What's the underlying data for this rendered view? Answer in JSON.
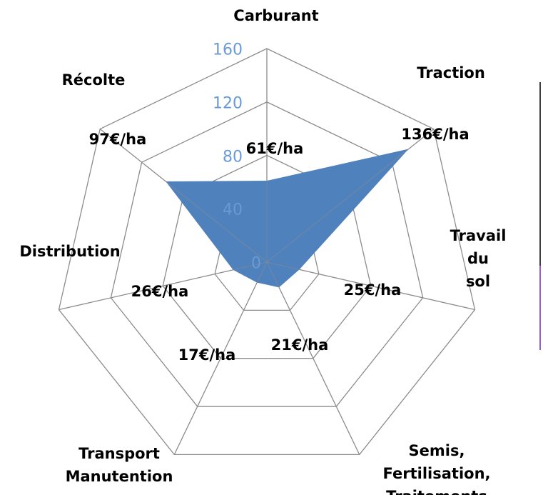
{
  "chart_data": {
    "type": "radar",
    "categories": [
      "Carburant",
      "Traction",
      "Travail du\nsol",
      "Semis, Fertilisation,\nTraitements",
      "Transport\nManutention",
      "Distribution",
      "Récolte"
    ],
    "values": [
      61,
      136,
      25,
      21,
      17,
      26,
      97
    ],
    "value_labels": [
      "61€/ha",
      "136€/ha",
      "25€/ha",
      "21€/ha",
      "17€/ha",
      "26€/ha",
      "97€/ha"
    ],
    "color": "#4f81bd",
    "ylim": [
      0,
      160
    ],
    "yticks": [
      0,
      40,
      80,
      120,
      160
    ],
    "grid": true
  }
}
